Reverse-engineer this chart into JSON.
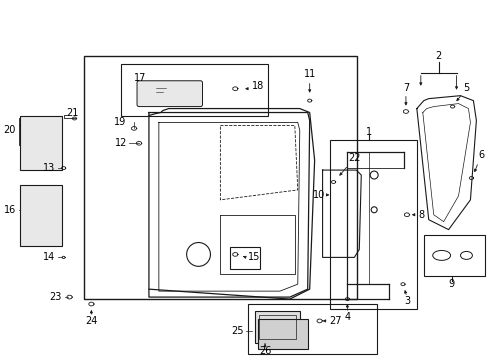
{
  "bg_color": "#ffffff",
  "line_color": "#1a1a1a",
  "fig_width": 4.89,
  "fig_height": 3.6,
  "dpi": 100,
  "fs": 7.0
}
